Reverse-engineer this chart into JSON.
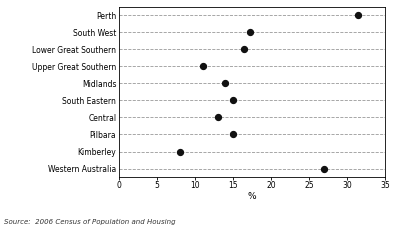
{
  "categories": [
    "Perth",
    "South West",
    "Lower Great Southern",
    "Upper Great Southern",
    "Midlands",
    "South Eastern",
    "Central",
    "Pilbara",
    "Kimberley",
    "Western Australia"
  ],
  "values": [
    31.5,
    17.2,
    16.5,
    11.0,
    14.0,
    15.0,
    13.0,
    15.0,
    8.0,
    27.0
  ],
  "dot_color": "#111111",
  "line_color": "#999999",
  "xlim": [
    0,
    35
  ],
  "xticks": [
    0,
    5,
    10,
    15,
    20,
    25,
    30,
    35
  ],
  "xlabel": "%",
  "source_text": "Source:  2006 Census of Population and Housing",
  "bg_color": "#ffffff",
  "dot_size": 18,
  "title": ""
}
